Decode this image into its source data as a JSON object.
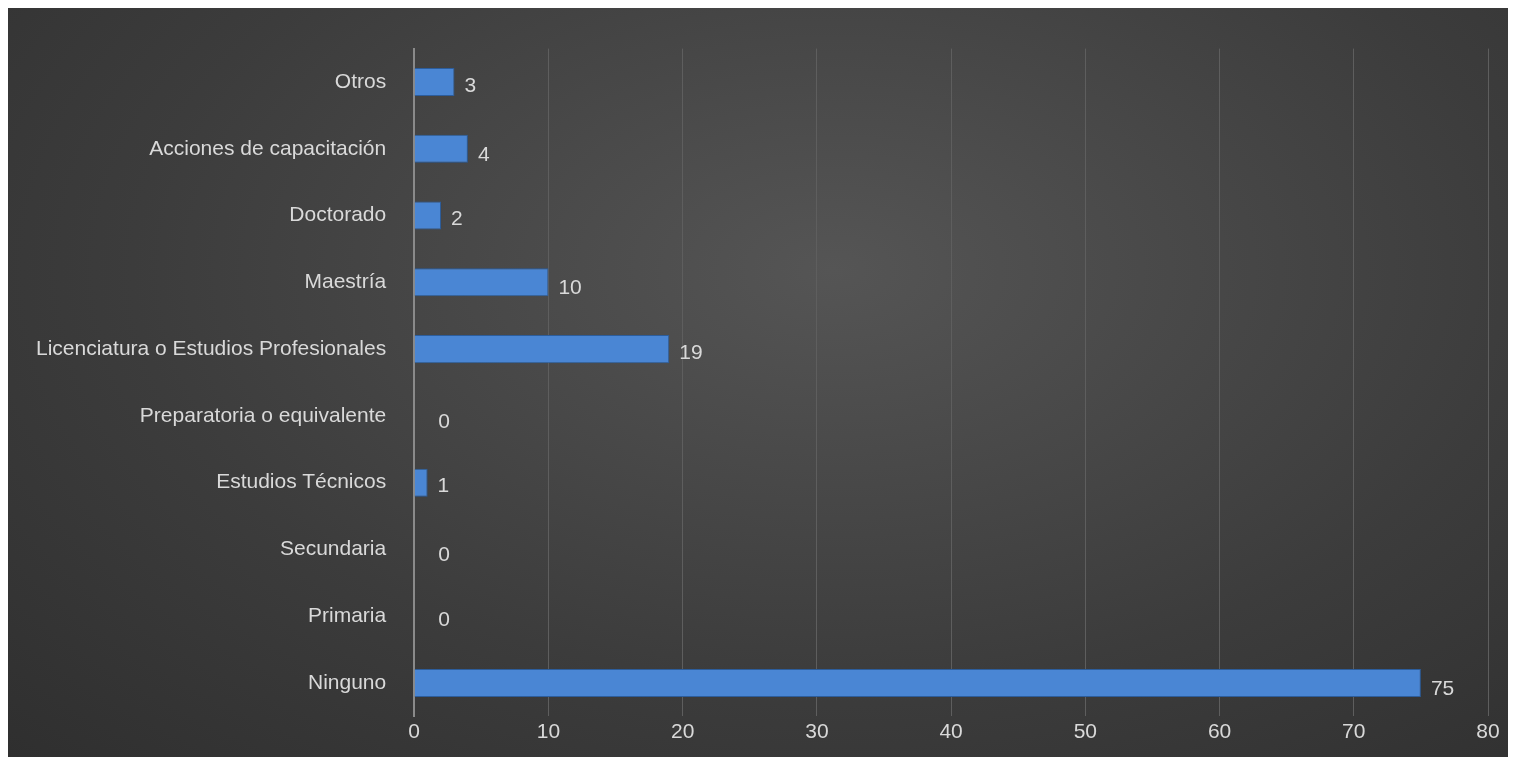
{
  "chart_data": {
    "type": "bar",
    "orientation": "horizontal",
    "categories": [
      "Otros",
      "Acciones de capacitación",
      "Doctorado",
      "Maestría",
      "Licenciatura o Estudios Profesionales",
      "Preparatoria o equivalente",
      "Estudios Técnicos",
      "Secundaria",
      "Primaria",
      "Ninguno"
    ],
    "values": [
      3,
      4,
      2,
      10,
      19,
      0,
      1,
      0,
      0,
      75
    ],
    "color": "#4a86d4",
    "xlim": [
      0,
      80
    ],
    "xticks": [
      0,
      10,
      20,
      30,
      40,
      50,
      60,
      70,
      80
    ],
    "grid": "x",
    "data_labels": true,
    "legend": false
  }
}
